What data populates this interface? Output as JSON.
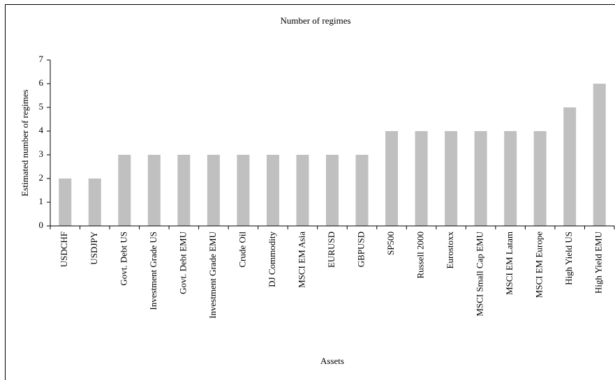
{
  "chart_data": {
    "type": "bar",
    "title": "Number of regimes",
    "x_label": "Assets",
    "y_label": "Estimated number of regimes",
    "categories": [
      "USDCHF",
      "USDJPY",
      "Govt. Debt US",
      "Investment Grade US",
      "Govt. Debt EMU",
      "Investment Grade EMU",
      "Crude Oil",
      "DJ Commodity",
      "MSCI EM Asia",
      "EURUSD",
      "GBPUSD",
      "SP500",
      "Russell 2000",
      "Eurostoxx",
      "MSCI Small Cap EMU",
      "MSCI EM Latam",
      "MSCI EM Europe",
      "High Yield US",
      "High Yield EMU"
    ],
    "values": [
      2,
      2,
      3,
      3,
      3,
      3,
      3,
      3,
      3,
      3,
      3,
      4,
      4,
      4,
      4,
      4,
      4,
      5,
      6
    ],
    "color": "#c0c0c0",
    "ylim": [
      0,
      7
    ],
    "yticks": [
      0,
      1,
      2,
      3,
      4,
      5,
      6,
      7
    ],
    "grid": false
  }
}
